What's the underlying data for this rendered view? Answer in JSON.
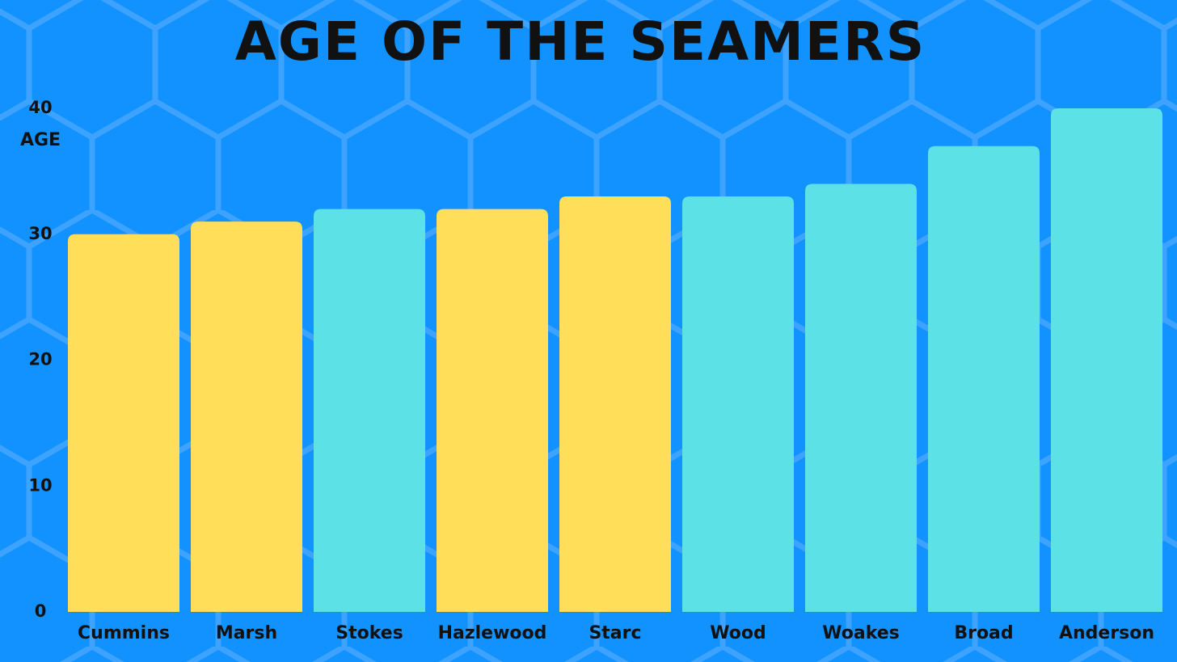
{
  "chart_data": {
    "type": "bar",
    "title": "AGE OF THE SEAMERS",
    "y_label": "AGE",
    "categories": [
      "Cummins",
      "Marsh",
      "Stokes",
      "Hazlewood",
      "Starc",
      "Wood",
      "Woakes",
      "Broad",
      "Anderson"
    ],
    "values": [
      30,
      31,
      32,
      32,
      33,
      33,
      34,
      37,
      40
    ],
    "colors": [
      "#ffde59",
      "#ffde59",
      "#5ce1e6",
      "#ffde59",
      "#ffde59",
      "#5ce1e6",
      "#5ce1e6",
      "#5ce1e6",
      "#5ce1e6"
    ],
    "ylim": [
      0,
      40
    ],
    "yticks": [
      0,
      10,
      20,
      30,
      40
    ],
    "grid": false
  }
}
